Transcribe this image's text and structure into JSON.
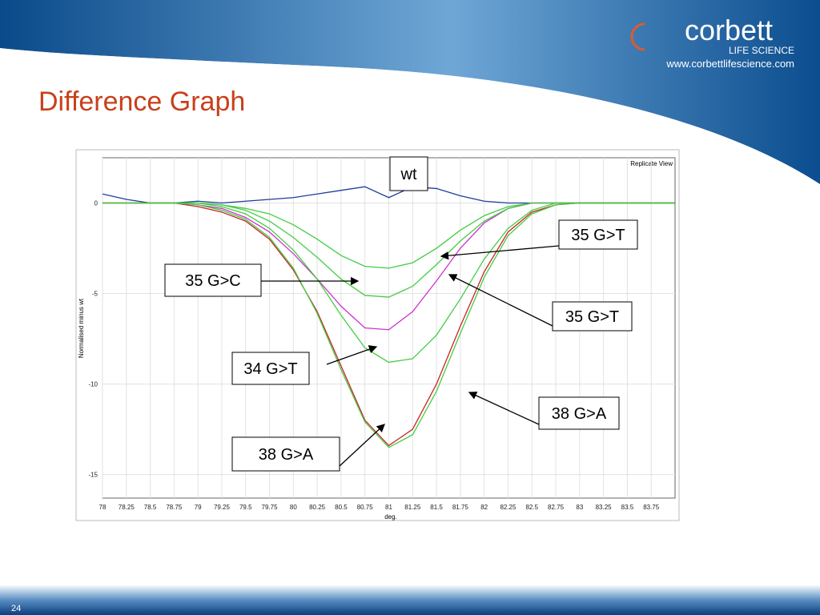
{
  "slide": {
    "title": "Difference Graph",
    "page_number": "24",
    "logo": {
      "name": "corbett",
      "tagline": "LIFE SCIENCE",
      "url": "www.corbettlifescience.com"
    }
  },
  "chart_data": {
    "type": "line",
    "view_label": "Replicate View",
    "xlabel": "deg.",
    "ylabel": "Normalised minus wt",
    "x": [
      78,
      78.25,
      78.5,
      78.75,
      79,
      79.25,
      79.5,
      79.75,
      80,
      80.25,
      80.5,
      80.75,
      81,
      81.25,
      81.5,
      81.75,
      82,
      82.25,
      82.5,
      82.75,
      83,
      83.25,
      83.5,
      83.75,
      84
    ],
    "xlim": [
      78,
      84
    ],
    "xticks": [
      78,
      78.25,
      78.5,
      78.75,
      79,
      79.25,
      79.5,
      79.75,
      80,
      80.25,
      80.5,
      80.75,
      81,
      81.25,
      81.5,
      81.75,
      82,
      82.25,
      82.5,
      82.75,
      83,
      83.25,
      83.5,
      83.75
    ],
    "ylim": [
      -16.3,
      2.5
    ],
    "yticks": [
      0,
      -5,
      -10,
      -15
    ],
    "grid": true,
    "series": [
      {
        "name": "wt",
        "color": "#1f3c9c",
        "values": [
          0.5,
          0.2,
          0,
          0,
          0.1,
          0,
          0.1,
          0.2,
          0.3,
          0.5,
          0.7,
          0.9,
          0.3,
          0.9,
          0.8,
          0.4,
          0.1,
          0,
          0,
          0,
          0,
          0,
          0,
          0,
          0
        ]
      },
      {
        "name": "35 G>T",
        "color": "#44cc44",
        "values": [
          0,
          0,
          0,
          0,
          0,
          -0.1,
          -0.3,
          -0.6,
          -1.2,
          -2.0,
          -2.9,
          -3.5,
          -3.6,
          -3.3,
          -2.5,
          -1.5,
          -0.7,
          -0.2,
          0,
          0,
          0,
          0,
          0,
          0,
          0
        ]
      },
      {
        "name": "35 G>C",
        "color": "#cc33cc",
        "values": [
          0,
          0,
          0,
          0,
          -0.1,
          -0.3,
          -0.8,
          -1.6,
          -2.8,
          -4.2,
          -5.7,
          -6.9,
          -7.0,
          -6.0,
          -4.3,
          -2.5,
          -1.1,
          -0.3,
          0,
          0,
          0,
          0,
          0,
          0,
          0
        ]
      },
      {
        "name": "35 G>T",
        "color": "#44cc44",
        "values": [
          0,
          0,
          0,
          0,
          0,
          -0.1,
          -0.4,
          -1,
          -1.9,
          -3.0,
          -4.2,
          -5.1,
          -5.2,
          -4.6,
          -3.4,
          -2.1,
          -1.0,
          -0.3,
          0,
          0,
          0,
          0,
          0,
          0,
          0
        ]
      },
      {
        "name": "34 G>T",
        "color": "#44cc44",
        "values": [
          0,
          0,
          0,
          0,
          0,
          -0.2,
          -0.6,
          -1.4,
          -2.6,
          -4.2,
          -6.2,
          -8.0,
          -8.8,
          -8.6,
          -7.3,
          -5.3,
          -3.1,
          -1.4,
          -0.4,
          0,
          0,
          0,
          0,
          0,
          0
        ]
      },
      {
        "name": "38 G>A",
        "color": "#cc2222",
        "values": [
          0,
          0,
          0,
          0,
          -0.2,
          -0.5,
          -1,
          -2,
          -3.7,
          -6,
          -9,
          -12,
          -13.4,
          -12.5,
          -10,
          -6.8,
          -3.8,
          -1.6,
          -0.5,
          -0.1,
          0,
          0,
          0,
          0,
          0
        ]
      },
      {
        "name": "38 G>A",
        "color": "#44cc44",
        "values": [
          0,
          0,
          0,
          0,
          -0.1,
          -0.4,
          -0.9,
          -1.9,
          -3.6,
          -6.1,
          -9.2,
          -12.1,
          -13.5,
          -12.8,
          -10.4,
          -7.2,
          -4.1,
          -1.8,
          -0.6,
          -0.1,
          0,
          0,
          0,
          0,
          0
        ]
      }
    ]
  }
}
